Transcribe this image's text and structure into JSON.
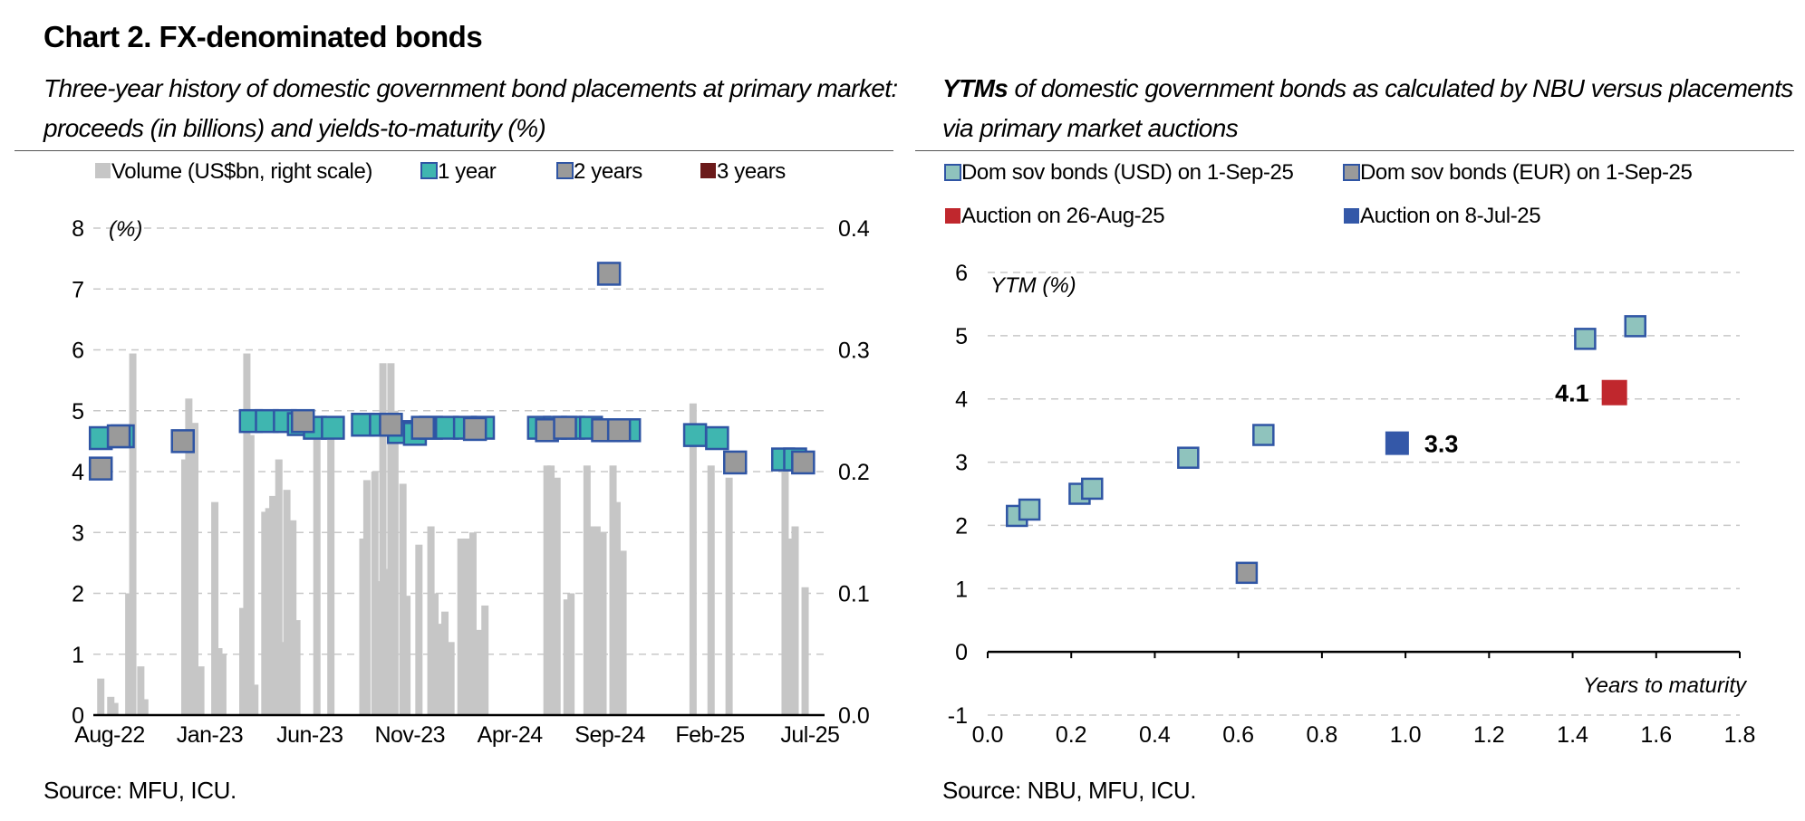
{
  "title": "Chart 2. FX-denominated bonds",
  "left": {
    "subtitle_line1": "Three-year history of domestic government bond placements at primary market:",
    "subtitle_line2": "proceeds (in billions) and yields-to-maturity (%)",
    "source": "Source: MFU, ICU."
  },
  "right": {
    "subtitle_bold": "YTMs",
    "subtitle_line1": " of domestic government bonds as calculated by NBU versus placements",
    "subtitle_line2": "via primary market auctions",
    "source": "Source: NBU, MFU, ICU."
  },
  "colors": {
    "volume": "#c6c6c6",
    "one_year": "#3fb6b0",
    "two_years": "#9a9a9a",
    "three_years": "#6b1a1a",
    "marker_border": "#2f55a4",
    "usd": "#8fc3bd",
    "eur": "#9a9a9a",
    "auction_aug": "#c0272d",
    "auction_jul": "#3458a8",
    "grid": "#c8c8c8"
  },
  "chart_data": [
    {
      "type": "bar+scatter",
      "legend_position": "top",
      "left_axis_label": "(%)",
      "ylim_left": [
        0,
        8
      ],
      "ylim_right": [
        0,
        0.4
      ],
      "yticks_left": [
        "0",
        "1",
        "2",
        "3",
        "4",
        "5",
        "6",
        "7",
        "8"
      ],
      "yticks_right": [
        "0.0",
        "0.1",
        "0.2",
        "0.3",
        "0.4"
      ],
      "x_range_months": 36,
      "x_ticks": [
        {
          "m": 0,
          "label": "Aug-22"
        },
        {
          "m": 5,
          "label": "Jan-23"
        },
        {
          "m": 10,
          "label": "Jun-23"
        },
        {
          "m": 15,
          "label": "Nov-23"
        },
        {
          "m": 20,
          "label": "Apr-24"
        },
        {
          "m": 25,
          "label": "Sep-24"
        },
        {
          "m": 30,
          "label": "Feb-25"
        },
        {
          "m": 35,
          "label": "Jul-25"
        }
      ],
      "legend": [
        "Volume (US$bn, right scale)",
        "1 year",
        "2 years",
        "3 years"
      ],
      "volume_series": {
        "name": "Volume (US$bn, right scale)",
        "points": [
          [
            0.1,
            0.03
          ],
          [
            0.6,
            0.015
          ],
          [
            0.8,
            0.01
          ],
          [
            1.5,
            0.1
          ],
          [
            1.7,
            0.297
          ],
          [
            2.1,
            0.04
          ],
          [
            2.3,
            0.013
          ],
          [
            4.3,
            0.21
          ],
          [
            4.5,
            0.26
          ],
          [
            4.8,
            0.24
          ],
          [
            5.1,
            0.04
          ],
          [
            5.8,
            0.175
          ],
          [
            6.0,
            0.055
          ],
          [
            6.2,
            0.05
          ],
          [
            7.2,
            0.088
          ],
          [
            7.4,
            0.297
          ],
          [
            7.6,
            0.23
          ],
          [
            7.8,
            0.025
          ],
          [
            8.3,
            0.167
          ],
          [
            8.5,
            0.17
          ],
          [
            8.7,
            0.18
          ],
          [
            8.9,
            0.13
          ],
          [
            9.0,
            0.21
          ],
          [
            9.2,
            0.06
          ],
          [
            9.4,
            0.185
          ],
          [
            9.7,
            0.16
          ],
          [
            9.9,
            0.078
          ],
          [
            10.9,
            0.23
          ],
          [
            11.6,
            0.232
          ],
          [
            13.2,
            0.145
          ],
          [
            13.4,
            0.193
          ],
          [
            13.8,
            0.2
          ],
          [
            14.0,
            0.11
          ],
          [
            14.2,
            0.289
          ],
          [
            14.4,
            0.12
          ],
          [
            14.6,
            0.289
          ],
          [
            14.8,
            0.25
          ],
          [
            15.2,
            0.19
          ],
          [
            15.4,
            0.098
          ],
          [
            16.0,
            0.14
          ],
          [
            16.6,
            0.155
          ],
          [
            16.8,
            0.1
          ],
          [
            17.0,
            0.075
          ],
          [
            17.3,
            0.085
          ],
          [
            17.6,
            0.06
          ],
          [
            18.1,
            0.145
          ],
          [
            18.4,
            0.145
          ],
          [
            18.7,
            0.15
          ],
          [
            19.0,
            0.07
          ],
          [
            19.3,
            0.09
          ],
          [
            22.4,
            0.205
          ],
          [
            22.6,
            0.205
          ],
          [
            22.9,
            0.195
          ],
          [
            23.4,
            0.095
          ],
          [
            23.6,
            0.1
          ],
          [
            24.4,
            0.205
          ],
          [
            24.7,
            0.155
          ],
          [
            24.9,
            0.155
          ],
          [
            25.2,
            0.15
          ],
          [
            25.7,
            0.205
          ],
          [
            25.9,
            0.175
          ],
          [
            26.2,
            0.135
          ],
          [
            29.7,
            0.256
          ],
          [
            30.6,
            0.205
          ],
          [
            31.5,
            0.195
          ],
          [
            34.3,
            0.205
          ],
          [
            34.6,
            0.145
          ],
          [
            34.8,
            0.155
          ],
          [
            35.3,
            0.105
          ]
        ]
      },
      "yield_series": [
        {
          "name": "1 year",
          "points": [
            [
              0.1,
              4.55
            ],
            [
              1.2,
              4.58
            ],
            [
              7.6,
              4.83
            ],
            [
              8.4,
              4.83
            ],
            [
              9.3,
              4.83
            ],
            [
              10.0,
              4.78
            ],
            [
              10.8,
              4.72
            ],
            [
              11.7,
              4.72
            ],
            [
              13.2,
              4.77
            ],
            [
              14.1,
              4.77
            ],
            [
              15.0,
              4.65
            ],
            [
              15.8,
              4.62
            ],
            [
              16.6,
              4.72
            ],
            [
              17.4,
              4.72
            ],
            [
              18.3,
              4.72
            ],
            [
              19.2,
              4.72
            ],
            [
              22.0,
              4.72
            ],
            [
              22.8,
              4.72
            ],
            [
              23.7,
              4.72
            ],
            [
              24.6,
              4.72
            ],
            [
              25.6,
              4.68
            ],
            [
              26.5,
              4.68
            ],
            [
              29.8,
              4.6
            ],
            [
              30.9,
              4.55
            ],
            [
              34.2,
              4.2
            ],
            [
              34.8,
              4.2
            ]
          ]
        },
        {
          "name": "2 years",
          "points": [
            [
              0.1,
              4.05
            ],
            [
              1.0,
              4.58
            ],
            [
              4.2,
              4.5
            ],
            [
              10.2,
              4.83
            ],
            [
              14.6,
              4.77
            ],
            [
              16.2,
              4.72
            ],
            [
              18.8,
              4.7
            ],
            [
              22.4,
              4.68
            ],
            [
              23.3,
              4.72
            ],
            [
              25.2,
              4.68
            ],
            [
              26.0,
              4.68
            ],
            [
              25.5,
              7.25
            ],
            [
              31.8,
              4.15
            ],
            [
              35.2,
              4.15
            ]
          ]
        },
        {
          "name": "3 years",
          "points": []
        }
      ]
    },
    {
      "type": "scatter",
      "legend_position": "top",
      "xlabel": "Years to maturity",
      "ylabel": "YTM (%)",
      "xlim": [
        0.0,
        1.8
      ],
      "ylim": [
        -1,
        6
      ],
      "xticks": [
        "0.0",
        "0.2",
        "0.4",
        "0.6",
        "0.8",
        "1.0",
        "1.2",
        "1.4",
        "1.6",
        "1.8"
      ],
      "yticks": [
        "-1",
        "0",
        "1",
        "2",
        "3",
        "4",
        "5",
        "6"
      ],
      "series": [
        {
          "name": "Dom sov bonds (USD) on 1-Sep-25",
          "points": [
            [
              0.07,
              2.15
            ],
            [
              0.1,
              2.25
            ],
            [
              0.22,
              2.5
            ],
            [
              0.25,
              2.58
            ],
            [
              0.48,
              3.07
            ],
            [
              0.66,
              3.43
            ],
            [
              1.43,
              4.95
            ],
            [
              1.55,
              5.15
            ]
          ]
        },
        {
          "name": "Dom sov bonds (EUR) on 1-Sep-25",
          "points": [
            [
              0.62,
              1.25
            ]
          ]
        },
        {
          "name": "Auction on 26-Aug-25",
          "points": [
            [
              1.5,
              4.1
            ]
          ],
          "label": "4.1"
        },
        {
          "name": "Auction on 8-Jul-25",
          "points": [
            [
              0.98,
              3.3
            ]
          ],
          "label": "3.3"
        }
      ]
    }
  ]
}
